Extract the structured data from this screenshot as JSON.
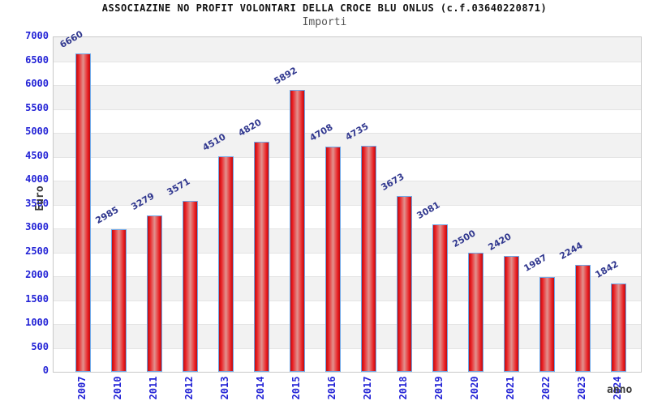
{
  "chart_data": {
    "type": "bar",
    "title": "ASSOCIAZINE NO PROFIT VOLONTARI DELLA CROCE BLU ONLUS (c.f.03640220871)",
    "subtitle": "Importi",
    "xlabel": "anno",
    "ylabel": "Euro",
    "categories": [
      "2007",
      "2010",
      "2011",
      "2012",
      "2013",
      "2014",
      "2015",
      "2016",
      "2017",
      "2018",
      "2019",
      "2020",
      "2021",
      "2022",
      "2023",
      "2024"
    ],
    "values": [
      6660,
      2985,
      3279,
      3571,
      4510,
      4820,
      5892,
      4708,
      4735,
      3673,
      3081,
      2500,
      2420,
      1987,
      2244,
      1842
    ],
    "ylim": [
      0,
      7000
    ],
    "ytick_step": 500,
    "grid": "alternating horizontal gray/white bands every 500, light gridlines",
    "legend": "none",
    "colors": {
      "bar_fill_edge": "#b80f14",
      "bar_fill_bright": "#e91c20",
      "bar_fill_center": "#e2928e",
      "bar_border": "#6fa8e8",
      "axis_tick_text": "#2323d6",
      "value_label_text": "#31388f",
      "band_gray": "#f2f2f2",
      "plot_border": "#c9c9c9",
      "title_text": "#111111",
      "subtitle_text": "#555555",
      "axis_title_text": "#3a3a3a"
    }
  }
}
